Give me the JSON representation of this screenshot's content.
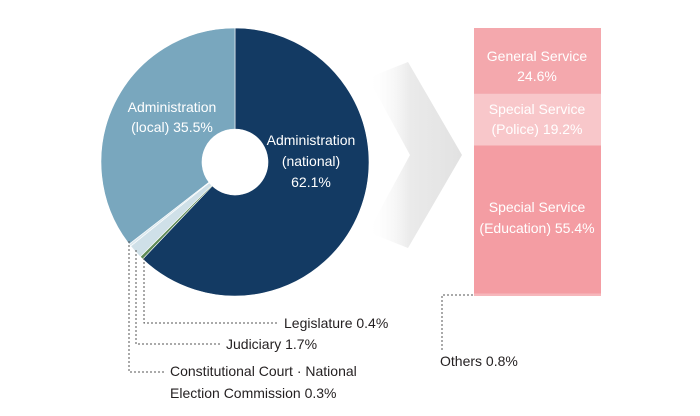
{
  "chart_data": [
    {
      "type": "pie",
      "variant": "donut",
      "title": "",
      "slices": [
        {
          "id": "national",
          "label_lines": [
            "Administration",
            "(national)",
            "62.1%"
          ],
          "value": 62.1,
          "color": "#133a63",
          "label_color": "#ffffff"
        },
        {
          "id": "legislature",
          "label_lines": [
            "Legislature 0.4%"
          ],
          "value": 0.4,
          "color": "#5e8a56",
          "label_color": "#231f20"
        },
        {
          "id": "judiciary",
          "label_lines": [
            "Judiciary 1.7%"
          ],
          "value": 1.7,
          "color": "#cfe0e8",
          "label_color": "#231f20"
        },
        {
          "id": "const-court",
          "label_lines": [
            "Constitutional Court · National",
            "Election Commission 0.3%"
          ],
          "value": 0.3,
          "color": "#dce9ef",
          "label_color": "#231f20"
        },
        {
          "id": "local",
          "label_lines": [
            "Administration",
            "(local) 35.5%"
          ],
          "value": 35.5,
          "color": "#79a7be",
          "label_color": "#ffffff"
        }
      ]
    },
    {
      "type": "bar",
      "variant": "stacked-100",
      "title": "",
      "segments": [
        {
          "id": "general",
          "label_lines": [
            "General Service",
            "24.6%"
          ],
          "value": 24.6,
          "color": "#f4a8ad",
          "label_color": "#ffffff"
        },
        {
          "id": "police",
          "label_lines": [
            "Special Service",
            "(Police) 19.2%"
          ],
          "value": 19.2,
          "color": "#f8c7ca",
          "label_color": "#ffffff"
        },
        {
          "id": "education",
          "label_lines": [
            "Special Service",
            "(Education) 55.4%"
          ],
          "value": 55.4,
          "color": "#f49da3",
          "label_color": "#ffffff"
        },
        {
          "id": "others",
          "label_lines": [
            "Others 0.8%"
          ],
          "value": 0.8,
          "color": "#f6b7bb",
          "label_color": "#231f20"
        }
      ]
    }
  ],
  "colors": {
    "arrow": "#eeeeee",
    "leader": "#555555"
  }
}
